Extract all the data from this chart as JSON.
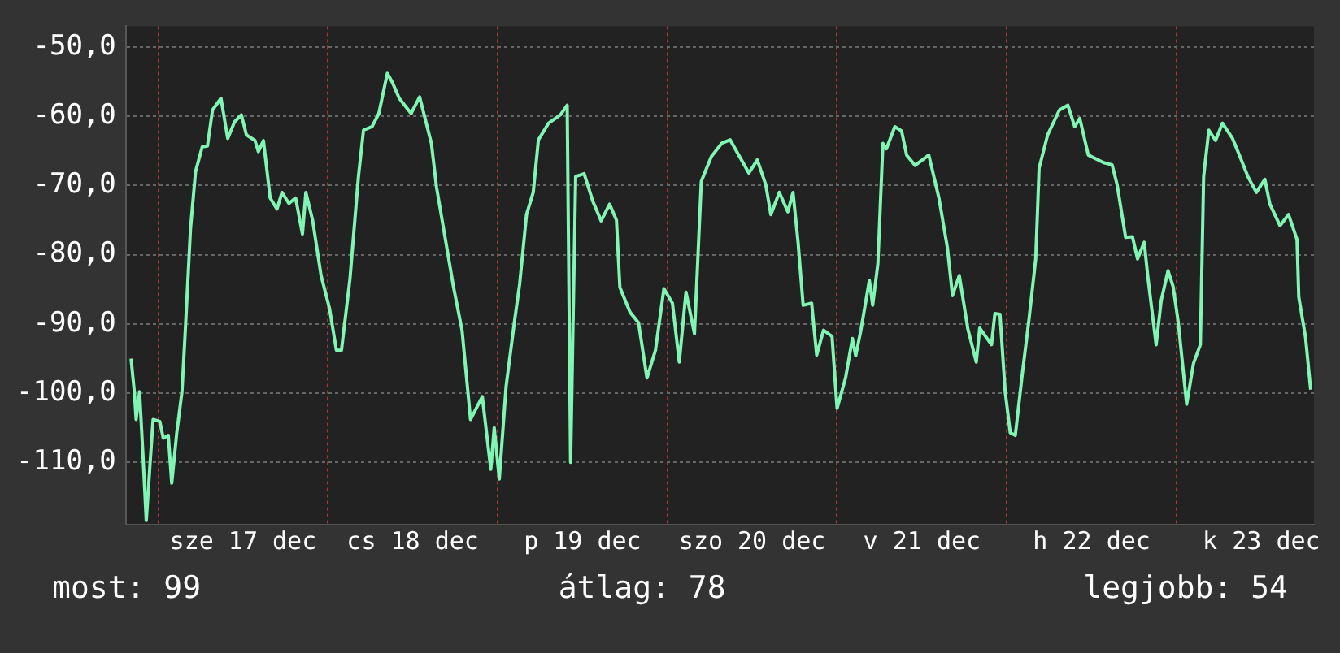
{
  "chart_data": {
    "type": "line",
    "x": [
      "--12-16T20:10",
      "--12-16T20:38",
      "--12-16T20:53",
      "--12-16T21:22",
      "--12-16T21:50",
      "--12-16T22:19",
      "--12-16T22:48",
      "--12-16T23:17",
      "--12-17T00:14",
      "--12-17T00:43",
      "--12-17T01:26",
      "--12-17T01:55",
      "--12-17T02:38",
      "--12-17T03:22",
      "--12-17T03:50",
      "--12-17T04:34",
      "--12-17T05:17",
      "--12-17T06:14",
      "--12-17T06:58",
      "--12-17T07:41",
      "--12-17T08:53",
      "--12-17T09:50",
      "--12-17T10:48",
      "--12-17T11:46",
      "--12-17T12:29",
      "--12-17T13:41",
      "--12-17T14:10",
      "--12-17T14:53",
      "--12-17T15:50",
      "--12-17T16:48",
      "--12-17T17:31",
      "--12-17T18:29",
      "--12-17T19:26",
      "--12-17T20:24",
      "--12-17T20:53",
      "--12-17T21:50",
      "--12-17T23:02",
      "--12-18T00:14",
      "--12-18T01:12",
      "--12-18T01:55",
      "--12-18T03:07",
      "--12-18T04:19",
      "--12-18T05:02",
      "--12-18T06:14",
      "--12-18T07:12",
      "--12-18T08:24",
      "--12-18T09:07",
      "--12-18T10:05",
      "--12-18T11:46",
      "--12-18T12:58",
      "--12-18T14:38",
      "--12-18T15:22",
      "--12-18T16:34",
      "--12-18T17:46",
      "--12-18T18:58",
      "--12-18T20:10",
      "--12-18T21:50",
      "--12-18T23:02",
      "--12-18T23:31",
      "--12-19T00:14",
      "--12-19T01:12",
      "--12-19T02:24",
      "--12-19T03:07",
      "--12-19T04:05",
      "--12-19T05:02",
      "--12-19T05:46",
      "--12-19T07:12",
      "--12-19T08:53",
      "--12-19T09:50",
      "--12-19T10:19",
      "--12-19T11:02",
      "--12-19T12:14",
      "--12-19T13:26",
      "--12-19T14:38",
      "--12-19T15:50",
      "--12-19T16:48",
      "--12-19T17:17",
      "--12-19T18:43",
      "--12-19T19:55",
      "--12-19T21:07",
      "--12-19T22:19",
      "--12-19T23:31",
      "--12-20T00:43",
      "--12-20T01:41",
      "--12-20T02:38",
      "--12-20T03:50",
      "--12-20T04:48",
      "--12-20T06:14",
      "--12-20T07:41",
      "--12-20T08:53",
      "--12-20T11:31",
      "--12-20T12:43",
      "--12-20T13:55",
      "--12-20T14:38",
      "--12-20T15:50",
      "--12-20T17:02",
      "--12-20T17:46",
      "--12-20T18:29",
      "--12-20T19:12",
      "--12-20T20:24",
      "--12-20T21:07",
      "--12-20T22:05",
      "--12-20T23:17",
      "--12-21T00:00",
      "--12-21T01:12",
      "--12-21T02:10",
      "--12-21T02:38",
      "--12-21T03:22",
      "--12-21T04:34",
      "--12-21T05:02",
      "--12-21T05:46",
      "--12-21T06:29",
      "--12-21T06:58",
      "--12-21T08:10",
      "--12-21T09:07",
      "--12-21T09:50",
      "--12-21T11:02",
      "--12-21T12:58",
      "--12-21T14:24",
      "--12-21T15:36",
      "--12-21T16:19",
      "--12-21T17:17",
      "--12-21T18:29",
      "--12-21T19:41",
      "--12-21T20:10",
      "--12-21T21:50",
      "--12-21T22:19",
      "--12-21T23:02",
      "--12-21T23:46",
      "--12-22T00:29",
      "--12-22T01:12",
      "--12-22T02:10",
      "--12-22T03:07",
      "--12-22T04:05",
      "--12-22T04:34",
      "--12-22T05:46",
      "--12-22T07:26",
      "--12-22T08:38",
      "--12-22T09:36",
      "--12-22T10:19",
      "--12-22T11:31",
      "--12-22T13:41",
      "--12-22T14:53",
      "--12-22T15:36",
      "--12-22T16:48",
      "--12-22T17:46",
      "--12-22T18:29",
      "--12-22T19:26",
      "--12-22T19:55",
      "--12-22T21:07",
      "--12-22T21:50",
      "--12-22T22:48",
      "--12-22T23:31",
      "--12-23T00:14",
      "--12-23T01:26",
      "--12-23T02:24",
      "--12-23T03:22",
      "--12-23T03:50",
      "--12-23T04:34",
      "--12-23T05:31",
      "--12-23T06:29",
      "--12-23T07:55",
      "--12-23T08:53",
      "--12-23T10:05",
      "--12-23T11:17",
      "--12-23T12:29",
      "--12-23T13:12",
      "--12-23T14:38",
      "--12-23T15:50",
      "--12-23T17:02",
      "--12-23T17:17",
      "--12-23T18:14",
      "--12-23T18:58"
    ],
    "series": [
      {
        "color": "#80f5b4",
        "values": [
          -95,
          -99.8,
          -103.8,
          -99.8,
          -108.6,
          -118.4,
          -111,
          -103.8,
          -104.1,
          -106.5,
          -106.1,
          -113,
          -105.7,
          -99.8,
          -91,
          -76.3,
          -68,
          -64.4,
          -64.3,
          -59.1,
          -57.4,
          -63.2,
          -60.8,
          -59.8,
          -62.7,
          -63.5,
          -65.1,
          -63.5,
          -71.8,
          -73.4,
          -71,
          -72.6,
          -71.8,
          -77,
          -71,
          -75,
          -83,
          -87.8,
          -93.8,
          -93.8,
          -83.5,
          -68.7,
          -62,
          -61.5,
          -59.6,
          -53.8,
          -55.1,
          -57.4,
          -59.6,
          -57.2,
          -63.9,
          -70.3,
          -77.5,
          -84.7,
          -90.9,
          -103.8,
          -100.5,
          -111,
          -105,
          -112.4,
          -99,
          -89.5,
          -84.2,
          -74.2,
          -71,
          -63.4,
          -61,
          -59.8,
          -58.4,
          -110,
          -68.7,
          -68.3,
          -72.2,
          -75.1,
          -72.7,
          -75,
          -84.7,
          -88.3,
          -89.8,
          -97.8,
          -93.8,
          -84.9,
          -87,
          -95.5,
          -85.4,
          -91.4,
          -69.4,
          -65.8,
          -63.9,
          -63.4,
          -68.2,
          -66.3,
          -69.9,
          -74.2,
          -71,
          -73.8,
          -71,
          -78.2,
          -87.3,
          -87,
          -94.5,
          -90.9,
          -91.8,
          -102.2,
          -97.8,
          -92.1,
          -94.6,
          -90.9,
          -83.7,
          -87.3,
          -81.3,
          -63.9,
          -64.7,
          -61.5,
          -62.1,
          -65.6,
          -67.1,
          -65.6,
          -71.8,
          -79,
          -85.9,
          -83,
          -90.7,
          -95.5,
          -90.6,
          -93,
          -88.5,
          -88.6,
          -99.8,
          -105.7,
          -106.1,
          -97.4,
          -89.5,
          -80.6,
          -67.5,
          -62.7,
          -59.1,
          -58.4,
          -61.5,
          -60.3,
          -65.6,
          -66.7,
          -67,
          -69.9,
          -77.5,
          -77.4,
          -80.6,
          -78.2,
          -83,
          -93,
          -86.6,
          -82.3,
          -84.6,
          -89.7,
          -101.6,
          -95.7,
          -93,
          -68.7,
          -62,
          -63.5,
          -61,
          -63.2,
          -65.6,
          -68.7,
          -71,
          -69.1,
          -72.7,
          -75.8,
          -74.2,
          -77.8,
          -86.1,
          -91.9,
          -99.5
        ]
      }
    ],
    "xlim": [
      "--12-16T19:26",
      "--12-23T19:26"
    ],
    "xticks": [
      {
        "value": "--12-17T00:00",
        "label": null
      },
      {
        "value": "--12-17T12:00",
        "label": "sze 17 dec"
      },
      {
        "value": "--12-18T00:00",
        "label": null
      },
      {
        "value": "--12-18T12:00",
        "label": "cs 18 dec"
      },
      {
        "value": "--12-19T00:00",
        "label": null
      },
      {
        "value": "--12-19T12:00",
        "label": "p 19 dec"
      },
      {
        "value": "--12-20T00:00",
        "label": null
      },
      {
        "value": "--12-20T12:00",
        "label": "szo 20 dec"
      },
      {
        "value": "--12-21T00:00",
        "label": null
      },
      {
        "value": "--12-21T12:00",
        "label": "v 21 dec"
      },
      {
        "value": "--12-22T00:00",
        "label": null
      },
      {
        "value": "--12-22T12:00",
        "label": "h 22 dec"
      },
      {
        "value": "--12-23T00:00",
        "label": null
      },
      {
        "value": "--12-23T12:00",
        "label": "k 23 dec"
      }
    ],
    "ylim": [
      -119,
      -47
    ],
    "yticks": [
      {
        "value": -50,
        "label": "-50,0"
      },
      {
        "value": -60,
        "label": "-60,0"
      },
      {
        "value": -70,
        "label": "-70,0"
      },
      {
        "value": -80,
        "label": "-80,0"
      },
      {
        "value": -90,
        "label": "-90,0"
      },
      {
        "value": -100,
        "label": "-100,0"
      },
      {
        "value": -110,
        "label": "-110,0"
      }
    ],
    "grid": true,
    "legend": false,
    "marker": "none",
    "line_style": "solid",
    "annotations": [
      "most: 99",
      "átlag: 78",
      "legjobb: 54"
    ]
  }
}
